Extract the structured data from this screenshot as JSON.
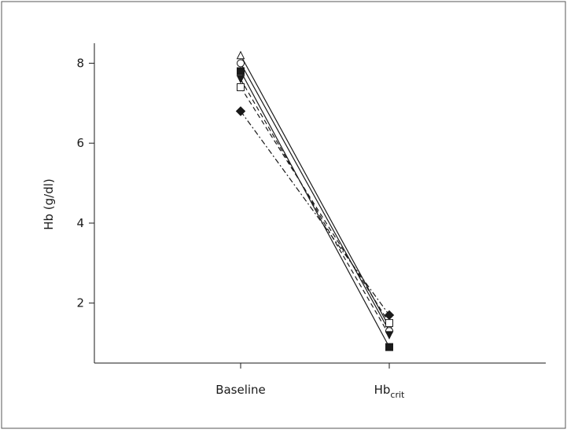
{
  "chart_data": {
    "type": "line",
    "xlabel": "",
    "ylabel": "Hb (g/dl)",
    "categories": [
      {
        "main": "Baseline",
        "sub": ""
      },
      {
        "main": "Hb",
        "sub": "crit"
      }
    ],
    "yticks": [
      2,
      4,
      6,
      8
    ],
    "ylim": [
      0.5,
      8.5
    ],
    "grid": false,
    "legend": "none",
    "series": [
      {
        "marker": "open-triangle",
        "dash": "solid",
        "values": [
          8.2,
          1.4
        ]
      },
      {
        "marker": "open-circle",
        "dash": "solid",
        "values": [
          8.0,
          1.3
        ]
      },
      {
        "marker": "filled-square",
        "dash": "solid",
        "values": [
          7.8,
          0.9
        ]
      },
      {
        "marker": "filled-triangle-down",
        "dash": "dashed",
        "values": [
          7.6,
          1.2
        ]
      },
      {
        "marker": "open-square",
        "dash": "dashed",
        "values": [
          7.4,
          1.5
        ]
      },
      {
        "marker": "filled-diamond",
        "dash": "dash-dot",
        "values": [
          6.8,
          1.7
        ]
      }
    ],
    "colors": {
      "line": "#1a1a1a",
      "frame": "#555555",
      "background": "#ffffff"
    }
  }
}
